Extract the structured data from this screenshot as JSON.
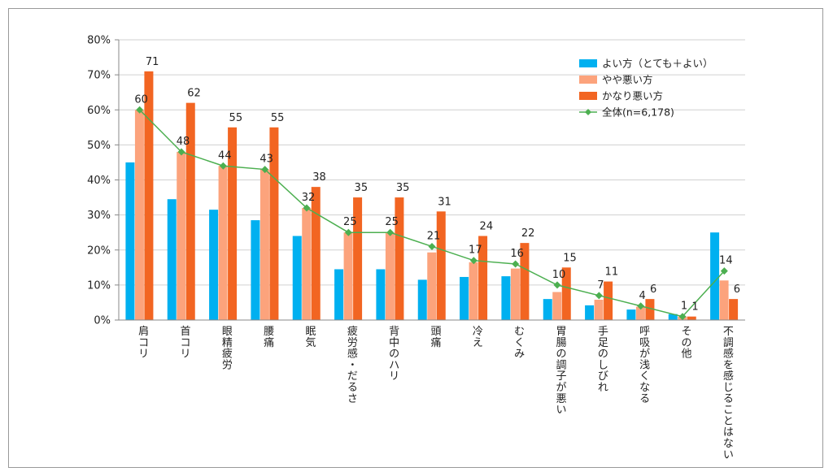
{
  "chart_data": {
    "type": "bar",
    "ylim": [
      0,
      80
    ],
    "yticks": [
      "0%",
      "10%",
      "20%",
      "30%",
      "40%",
      "50%",
      "60%",
      "70%",
      "80%"
    ],
    "grid": true,
    "legend_position": "top-right",
    "categories": [
      "肩コリ",
      "首コリ",
      "眼精疲労",
      "腰痛",
      "眠気",
      "疲労感・だるさ",
      "背中のハリ",
      "頭痛",
      "冷え",
      "むくみ",
      "胃腸の調子が悪い",
      "手足のしびれ",
      "呼吸が浅くなる",
      "その他",
      "不調感を感じることはない"
    ],
    "series": [
      {
        "name": "よい方（とても＋よい）",
        "kind": "bar",
        "color": "#00b0f0",
        "values": [
          45,
          34.5,
          31.5,
          28.5,
          24,
          14.5,
          14.5,
          11.5,
          12.3,
          12.5,
          6,
          4.2,
          3,
          1.7,
          25
        ]
      },
      {
        "name": "やや悪い方",
        "kind": "bar",
        "color": "#fca37c",
        "values": [
          60,
          48,
          44,
          43,
          32,
          25,
          25,
          19.3,
          16.5,
          14.7,
          8,
          5.8,
          3.8,
          1,
          11.3
        ]
      },
      {
        "name": "かなり悪い方",
        "kind": "bar",
        "color": "#f26522",
        "values": [
          71,
          62,
          55,
          55,
          38,
          35,
          35,
          31,
          24,
          22,
          15,
          11,
          6,
          1,
          6
        ],
        "labels": [
          "71",
          "62",
          "55",
          "55",
          "38",
          "35",
          "35",
          "31",
          "24",
          "22",
          "15",
          "11",
          "6",
          "1",
          "6"
        ]
      },
      {
        "name": "全体(n=6,178)",
        "kind": "line",
        "color": "#4caf50",
        "values": [
          60,
          48,
          44,
          43,
          32,
          25,
          25,
          21,
          17,
          16,
          10,
          7,
          4,
          1,
          14
        ],
        "labels": [
          "60",
          "48",
          "44",
          "43",
          "32",
          "25",
          "25",
          "21",
          "17",
          "16",
          "10",
          "7",
          "4",
          "1",
          "14"
        ]
      }
    ]
  }
}
